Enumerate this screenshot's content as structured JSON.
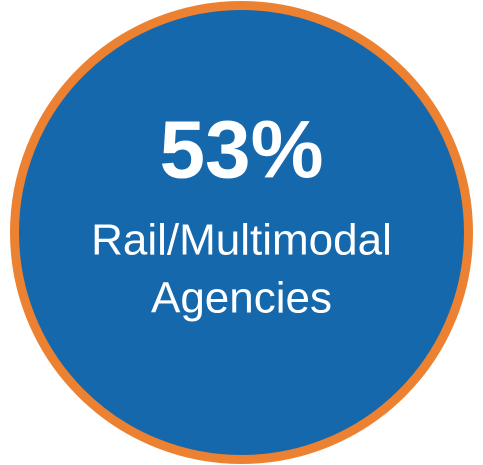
{
  "badge": {
    "stat": "53%",
    "label_lines": [
      "Rail/Multimodal",
      "Agencies"
    ]
  }
}
